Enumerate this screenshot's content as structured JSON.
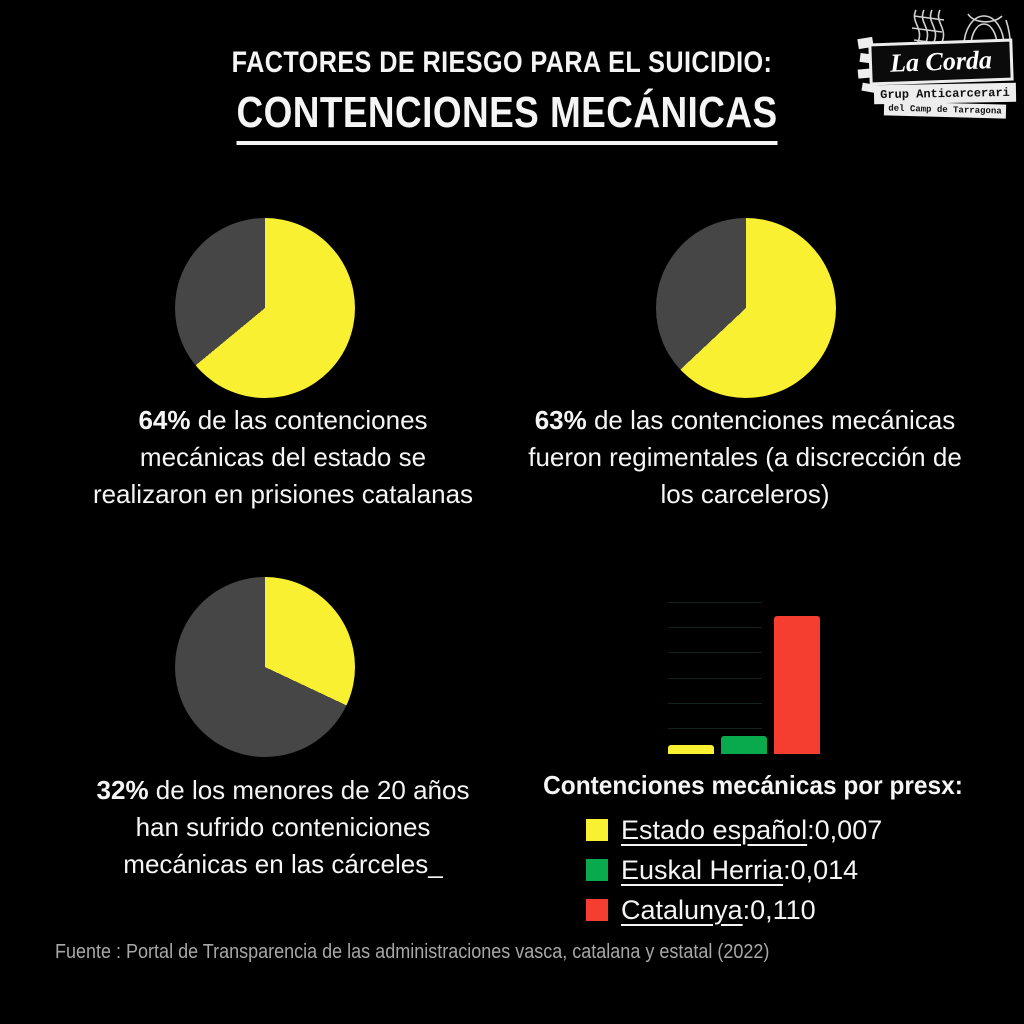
{
  "theme": {
    "background": "#000000",
    "text": "#f5f5f5",
    "muted_text": "#a8a8a8",
    "yellow": "#faf032",
    "pie_gray": "#464646",
    "green": "#09a94e",
    "red": "#f53d30",
    "gridline": "#102519"
  },
  "header": {
    "line1": "FACTORES DE RIESGO PARA EL SUICIDIO:",
    "line2": "CONTENCIONES MECÁNICAS"
  },
  "logo": {
    "title": "La Corda",
    "sub1": "Grup Anticarcerari",
    "sub2": "del Camp de Tarragona"
  },
  "captions": {
    "p64": {
      "lead": "64%",
      "l1": " de las contenciones",
      "l2": "mecánicas del estado se",
      "l3": "realizaron en prisiones catalanas"
    },
    "p63": {
      "lead": "63%",
      "l1": " de las contenciones mecánicas",
      "l2": "fueron regimentales (a discrección de",
      "l3": "los carceleros)"
    },
    "p32": {
      "lead": "32%",
      "l1": " de los menores de 20 años",
      "l2": "han sufrido conteniciones",
      "l3": "mecánicas en las cárceles_"
    }
  },
  "legend": {
    "title": "Contenciones mecánicas por presx:",
    "separator": ": ",
    "items": [
      {
        "label": "Estado español",
        "value": "0,007",
        "color": "#faf032"
      },
      {
        "label": "Euskal Herria",
        "value": "0,014",
        "color": "#09a94e"
      },
      {
        "label": "Catalunya",
        "value": "0,110",
        "color": "#f53d30"
      }
    ]
  },
  "footer": "Fuente : Portal de Transparencia de las administraciones vasca, catalana y estatal (2022)",
  "chart_data": [
    {
      "type": "pie",
      "title": "64% de las contenciones mecánicas del estado se realizaron en prisiones catalanas",
      "values": [
        64,
        36
      ],
      "colors": [
        "#faf032",
        "#464646"
      ],
      "start_angle_deg": 0,
      "direction": "clockwise"
    },
    {
      "type": "pie",
      "title": "63% de las contenciones mecánicas fueron regimentales (a discrección de los carceleros)",
      "values": [
        63,
        37
      ],
      "colors": [
        "#faf032",
        "#464646"
      ],
      "start_angle_deg": 0,
      "direction": "clockwise"
    },
    {
      "type": "pie",
      "title": "32% de los menores de 20 años han sufrido conteniciones mecánicas en las cárceles",
      "values": [
        32,
        68
      ],
      "colors": [
        "#faf032",
        "#464646"
      ],
      "start_angle_deg": 0,
      "direction": "clockwise"
    },
    {
      "type": "bar",
      "title": "Contenciones mecánicas por presx:",
      "categories": [
        "Estado español",
        "Euskal Herria",
        "Catalunya"
      ],
      "values": [
        0.007,
        0.014,
        0.11
      ],
      "colors": [
        "#faf032",
        "#09a94e",
        "#f53d30"
      ],
      "ylim": [
        0,
        0.12
      ],
      "grid_step": 0.02,
      "grid": true,
      "legend_position": "below"
    }
  ]
}
